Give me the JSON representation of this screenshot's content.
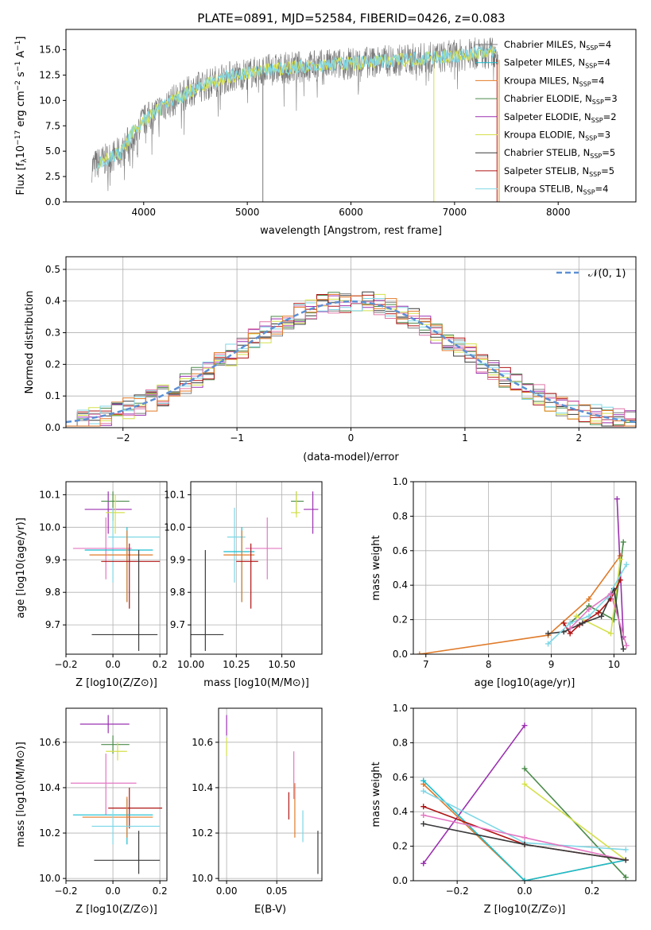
{
  "figure_title": "PLATE=0891, MJD=52584, FIBERID=0426, z=0.083",
  "colors": {
    "Chabrier MILES": "#7f7f7f",
    "Salpeter MILES": "#17becf",
    "Kroupa MILES": "#e07b2a",
    "Chabrier ELODIE": "#4a8a4a",
    "Salpeter ELODIE": "#9b30b0",
    "Kroupa ELODIE": "#d4e04a",
    "Chabrier STELIB": "#3a3a3a",
    "Salpeter STELIB": "#b01515",
    "Kroupa STELIB": "#7fd7e6",
    "Pink": "#e377c2",
    "Normal": "#5b8fd4"
  },
  "chart_data": [
    {
      "id": "spectrum",
      "type": "line",
      "xlabel": "wavelength [Angstrom, rest frame]",
      "ylabel": "Flux [f",
      "ylabel_unit": "10",
      "ylabel_exp": "−17",
      "ylabel_rest": " erg cm",
      "ylabel_exp2": "−2",
      "ylabel_rest2": " s",
      "ylabel_exp3": "−1",
      "ylabel_rest3": " A",
      "ylabel_exp4": "−1",
      "ylabel_end": "]",
      "xlim": [
        3250,
        8750
      ],
      "ylim": [
        0,
        17
      ],
      "xticks": [
        "4000",
        "5000",
        "6000",
        "7000",
        "8000"
      ],
      "xtick_values": [
        4000,
        5000,
        6000,
        7000,
        8000
      ],
      "yticks": [
        "0.0",
        "2.5",
        "5.0",
        "7.5",
        "10.0",
        "12.5",
        "15.0"
      ],
      "ytick_values": [
        0,
        2.5,
        5,
        7.5,
        10,
        12.5,
        15
      ],
      "continuum": [
        [
          3500,
          3.5
        ],
        [
          3800,
          5.0
        ],
        [
          3900,
          7.0
        ],
        [
          4000,
          8.0
        ],
        [
          4200,
          9.5
        ],
        [
          4500,
          11.2
        ],
        [
          4800,
          12.3
        ],
        [
          5200,
          13.0
        ],
        [
          5500,
          13.3
        ],
        [
          5800,
          13.5
        ],
        [
          6200,
          13.8
        ],
        [
          6500,
          14.0
        ],
        [
          6800,
          14.2
        ],
        [
          7200,
          14.6
        ],
        [
          7400,
          14.8
        ]
      ],
      "legend": [
        {
          "label": "Chabrier MILES",
          "sub": "SSP",
          "n": "=4"
        },
        {
          "label": "Salpeter MILES",
          "sub": "SSP",
          "n": "=4"
        },
        {
          "label": "Kroupa MILES",
          "sub": "SSP",
          "n": "=4"
        },
        {
          "label": "Chabrier ELODIE",
          "sub": "SSP",
          "n": "=3"
        },
        {
          "label": "Salpeter ELODIE",
          "sub": "SSP",
          "n": "=2"
        },
        {
          "label": "Kroupa ELODIE",
          "sub": "SSP",
          "n": "=3"
        },
        {
          "label": "Chabrier STELIB",
          "sub": "SSP",
          "n": "=5"
        },
        {
          "label": "Salpeter STELIB",
          "sub": "SSP",
          "n": "=5"
        },
        {
          "label": "Kroupa STELIB",
          "sub": "SSP",
          "n": "=4"
        }
      ],
      "legend_placement": "top-right",
      "grid": false
    },
    {
      "id": "residuals",
      "type": "histogram",
      "xlabel": "(data-model)/error",
      "ylabel": "Normed distribution",
      "xlim": [
        -2.5,
        2.5
      ],
      "ylim": [
        0,
        0.54
      ],
      "xticks": [
        "−2",
        "−1",
        "0",
        "1",
        "2"
      ],
      "xtick_values": [
        -2,
        -1,
        0,
        1,
        2
      ],
      "yticks": [
        "0.0",
        "0.1",
        "0.2",
        "0.3",
        "0.4",
        "0.5"
      ],
      "ytick_values": [
        0,
        0.1,
        0.2,
        0.3,
        0.4,
        0.5
      ],
      "bin_width": 0.1,
      "reference_curve": {
        "label": "𝒩(0, 1)",
        "style": "dashed"
      },
      "legend_placement": "top-right",
      "grid": true
    },
    {
      "id": "age_vs_Z",
      "type": "errorbar",
      "xlabel": "Z [log",
      "xlabel_sub": "10",
      "xlabel_rest": "(Z/Z",
      "xlabel_sub2": "⊙",
      "xlabel_end": ")]",
      "ylabel": "age  [log10(age/yr)]",
      "xlim": [
        -0.2,
        0.23
      ],
      "ylim": [
        9.61,
        10.14
      ],
      "xticks": [
        "−0.2",
        "0.0",
        "0.2"
      ],
      "xtick_values": [
        -0.2,
        0.0,
        0.2
      ],
      "yticks": [
        "9.7",
        "9.8",
        "9.9",
        "10.0",
        "10.1"
      ],
      "ytick_values": [
        9.7,
        9.8,
        9.9,
        10.0,
        10.1
      ],
      "grid": true
    },
    {
      "id": "age_vs_mass",
      "type": "errorbar",
      "xlabel": "mass [log10(M/M⊙)]",
      "xlim": [
        10.0,
        10.72
      ],
      "ylim": [
        9.61,
        10.14
      ],
      "xticks": [
        "10.00",
        "10.25",
        "10.50"
      ],
      "xtick_values": [
        10.0,
        10.25,
        10.5
      ],
      "yticks": [
        "9.7",
        "9.8",
        "9.9",
        "10.0",
        "10.1"
      ],
      "ytick_values": [
        9.7,
        9.8,
        9.9,
        10.0,
        10.1
      ],
      "grid": true
    },
    {
      "id": "massweight_vs_age",
      "type": "line",
      "xlabel": "age  [log10(age/yr)]",
      "ylabel": "mass weight",
      "xlim": [
        6.8,
        10.35
      ],
      "ylim": [
        0,
        1.0
      ],
      "xticks": [
        "7",
        "8",
        "9",
        "10"
      ],
      "xtick_values": [
        7,
        8,
        9,
        10
      ],
      "yticks": [
        "0.0",
        "0.2",
        "0.4",
        "0.6",
        "0.8",
        "1.0"
      ],
      "ytick_values": [
        0,
        0.2,
        0.4,
        0.6,
        0.8,
        1.0
      ],
      "grid": true,
      "series": [
        {
          "color_key": "Kroupa MILES",
          "x": [
            6.9,
            8.95,
            9.6,
            10.1
          ],
          "y": [
            0.0,
            0.11,
            0.32,
            0.57
          ]
        },
        {
          "color_key": "Salpeter ELODIE",
          "x": [
            10.05,
            10.15
          ],
          "y": [
            0.9,
            0.1
          ]
        },
        {
          "color_key": "Chabrier ELODIE",
          "x": [
            9.3,
            9.6,
            10.0,
            10.15
          ],
          "y": [
            0.18,
            0.28,
            0.2,
            0.65
          ]
        },
        {
          "color_key": "Kroupa ELODIE",
          "x": [
            9.4,
            9.95,
            10.1
          ],
          "y": [
            0.22,
            0.12,
            0.55
          ]
        },
        {
          "color_key": "Salpeter STELIB",
          "x": [
            9.2,
            9.3,
            9.45,
            9.75,
            9.95,
            10.1
          ],
          "y": [
            0.18,
            0.12,
            0.17,
            0.24,
            0.32,
            0.43
          ]
        },
        {
          "color_key": "Chabrier STELIB",
          "x": [
            8.95,
            9.2,
            9.5,
            9.8,
            10.0,
            10.15
          ],
          "y": [
            0.12,
            0.13,
            0.18,
            0.22,
            0.38,
            0.03
          ]
        },
        {
          "color_key": "Kroupa STELIB",
          "x": [
            8.95,
            9.3,
            9.6,
            9.9,
            10.2
          ],
          "y": [
            0.06,
            0.18,
            0.22,
            0.33,
            0.52
          ]
        },
        {
          "color_key": "Pink",
          "x": [
            9.3,
            9.6,
            9.95,
            10.2
          ],
          "y": [
            0.15,
            0.26,
            0.35,
            0.05
          ]
        }
      ]
    },
    {
      "id": "mass_vs_Z",
      "type": "errorbar",
      "xlabel": "Z [log10(Z/Z⊙)]",
      "ylabel": "mass [log10(M/M⊙)]",
      "xlim": [
        -0.2,
        0.23
      ],
      "ylim": [
        9.99,
        10.75
      ],
      "xticks": [
        "−0.2",
        "0.0",
        "0.2"
      ],
      "xtick_values": [
        -0.2,
        0.0,
        0.2
      ],
      "yticks": [
        "10.0",
        "10.2",
        "10.4",
        "10.6"
      ],
      "ytick_values": [
        10.0,
        10.2,
        10.4,
        10.6
      ],
      "grid": true
    },
    {
      "id": "mass_vs_ebv",
      "type": "errorbar",
      "xlabel": "E(B-V)",
      "xlim": [
        -0.008,
        0.095
      ],
      "ylim": [
        9.99,
        10.75
      ],
      "xticks": [
        "0.00",
        "0.05"
      ],
      "xtick_values": [
        0.0,
        0.05
      ],
      "yticks": [
        "10.0",
        "10.2",
        "10.4",
        "10.6"
      ],
      "ytick_values": [
        10.0,
        10.2,
        10.4,
        10.6
      ],
      "grid": true
    },
    {
      "id": "massweight_vs_Z",
      "type": "line",
      "xlabel": "Z [log10(Z/Z⊙)]",
      "ylabel": "mass weight",
      "xlim": [
        -0.33,
        0.33
      ],
      "ylim": [
        0,
        1.0
      ],
      "xticks": [
        "−0.2",
        "0.0",
        "0.2"
      ],
      "xtick_values": [
        -0.2,
        0.0,
        0.2
      ],
      "yticks": [
        "0.0",
        "0.2",
        "0.4",
        "0.6",
        "0.8",
        "1.0"
      ],
      "ytick_values": [
        0,
        0.2,
        0.4,
        0.6,
        0.8,
        1.0
      ],
      "grid": true,
      "series": [
        {
          "color_key": "Salpeter ELODIE",
          "x": [
            -0.3,
            0.0
          ],
          "y": [
            0.1,
            0.9
          ]
        },
        {
          "color_key": "Chabrier ELODIE",
          "x": [
            0.0,
            0.3
          ],
          "y": [
            0.65,
            0.02
          ]
        },
        {
          "color_key": "Kroupa ELODIE",
          "x": [
            0.0,
            0.3
          ],
          "y": [
            0.56,
            0.12
          ]
        },
        {
          "color_key": "Kroupa MILES",
          "x": [
            -0.3,
            0.0,
            0.3
          ],
          "y": [
            0.56,
            0.0,
            0.12
          ]
        },
        {
          "color_key": "Salpeter MILES",
          "x": [
            -0.3,
            0.0,
            0.3
          ],
          "y": [
            0.58,
            0.0,
            0.12
          ]
        },
        {
          "color_key": "Kroupa STELIB",
          "x": [
            -0.3,
            0.0,
            0.3
          ],
          "y": [
            0.52,
            0.22,
            0.18
          ]
        },
        {
          "color_key": "Salpeter STELIB",
          "x": [
            -0.3,
            0.0,
            0.3
          ],
          "y": [
            0.43,
            0.21,
            0.12
          ]
        },
        {
          "color_key": "Pink",
          "x": [
            -0.3,
            0.0,
            0.3
          ],
          "y": [
            0.38,
            0.25,
            0.12
          ]
        },
        {
          "color_key": "Chabrier STELIB",
          "x": [
            -0.3,
            0.0,
            0.3
          ],
          "y": [
            0.33,
            0.21,
            0.12
          ]
        }
      ]
    }
  ]
}
